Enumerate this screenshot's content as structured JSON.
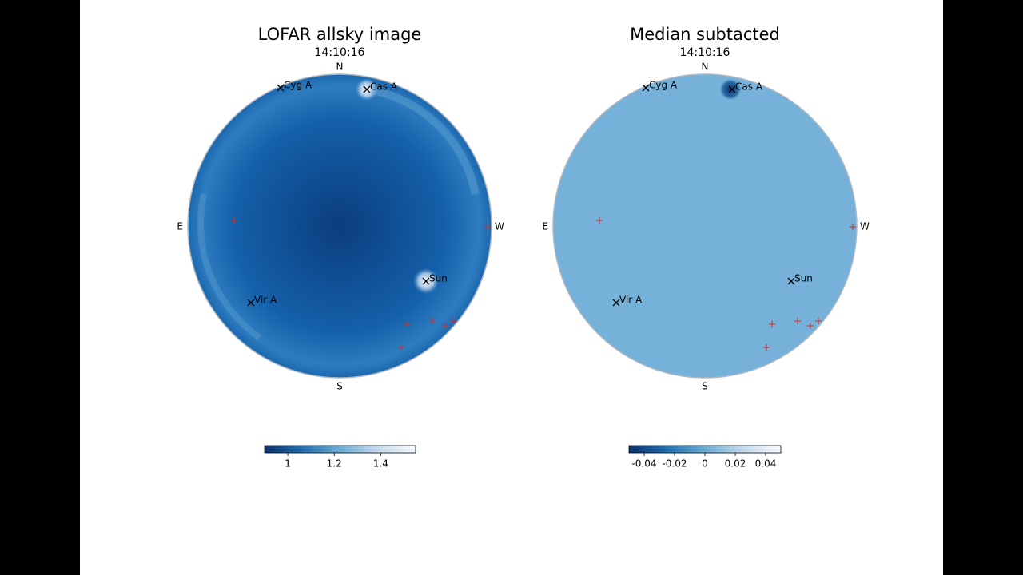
{
  "chart_data": [
    {
      "type": "image",
      "title": "LOFAR allsky image",
      "subtitle": "14:10:16",
      "directions": [
        "N",
        "E",
        "W",
        "S"
      ],
      "sources": [
        "Cyg A",
        "Cas A",
        "Sun",
        "Vir A"
      ],
      "colors": [
        "#08306b",
        "#2171b5",
        "#6baed6",
        "#c6dbef",
        "#f7fbff"
      ],
      "clim": [
        0.9,
        1.55
      ],
      "cticks": [
        1,
        1.2,
        1.4
      ]
    },
    {
      "type": "image",
      "title": "Median subtacted",
      "subtitle": "14:10:16",
      "directions": [
        "N",
        "E",
        "W",
        "S"
      ],
      "sources": [
        "Cyg A",
        "Cas A",
        "Sun",
        "Vir A"
      ],
      "colors": [
        "#08306b",
        "#2171b5",
        "#6baed6",
        "#c6dbef",
        "#f7fbff"
      ],
      "clim": [
        -0.05,
        0.05
      ],
      "cticks": [
        -0.04,
        -0.02,
        0,
        0.02,
        0.04
      ]
    }
  ]
}
